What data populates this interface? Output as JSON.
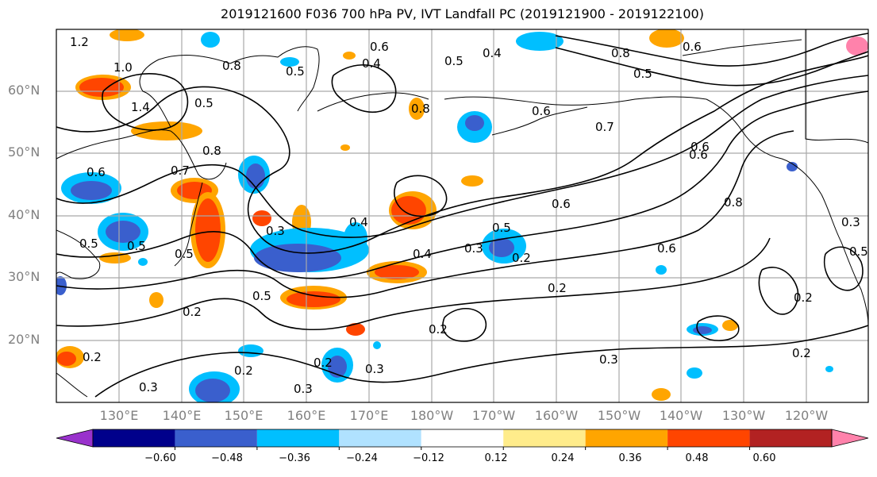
{
  "title": "2019121600 F036 700 hPa PV, IVT Landfall PC (2019121900 - 2019122100)",
  "lat_labels": [
    "60°N",
    "50°N",
    "40°N",
    "30°N",
    "20°N"
  ],
  "lon_labels": [
    "130°E",
    "140°E",
    "150°E",
    "160°E",
    "170°E",
    "180°W",
    "170°W",
    "160°W",
    "150°W",
    "140°W",
    "130°W",
    "120°W"
  ],
  "colorbar": {
    "colors": [
      "#9932cc",
      "#00008b",
      "#3a5fcd",
      "#00bfff",
      "#b0e2ff",
      "#ffffff",
      "#ffec8b",
      "#ffa500",
      "#ff4500",
      "#b22222",
      "#ff82ab"
    ],
    "tick_labels": [
      "−0.60",
      "−0.48",
      "−0.36",
      "−0.24",
      "−0.12",
      "0.12",
      "0.24",
      "0.36",
      "0.48",
      "0.60"
    ]
  },
  "contour_labels": [
    "1.2",
    "1.0",
    "1.4",
    "0.8",
    "0.5",
    "0.6",
    "0.4",
    "0.5",
    "0.8",
    "0.5",
    "0.4",
    "0.6",
    "0.6",
    "0.8",
    "0.7",
    "0.5",
    "0.6",
    "0.6",
    "0.7",
    "0.8",
    "0.5",
    "0.6",
    "0.5",
    "0.3",
    "0.4",
    "0.4",
    "0.5",
    "0.3",
    "0.5",
    "0.6",
    "0.2",
    "0.6",
    "0.2",
    "0.5",
    "0.8",
    "0.3",
    "0.5",
    "0.2",
    "0.2",
    "0.2",
    "0.2",
    "0.3",
    "0.2",
    "0.2",
    "0.3",
    "0.3",
    "0.2"
  ],
  "chart_data": {
    "type": "map",
    "title": "2019121600 F036 700 hPa PV, IVT Landfall PC (2019121900 - 2019122100)",
    "lon_range_deg_east": [
      120,
      250
    ],
    "lat_range_deg": [
      10,
      70
    ],
    "grid": true,
    "fill_levels": [
      -0.6,
      -0.48,
      -0.36,
      -0.24,
      -0.12,
      0.12,
      0.24,
      0.36,
      0.48,
      0.6
    ],
    "contour_levels_labeled": [
      0.2,
      0.3,
      0.4,
      0.5,
      0.6,
      0.7,
      0.8,
      1.0,
      1.2,
      1.4
    ]
  }
}
